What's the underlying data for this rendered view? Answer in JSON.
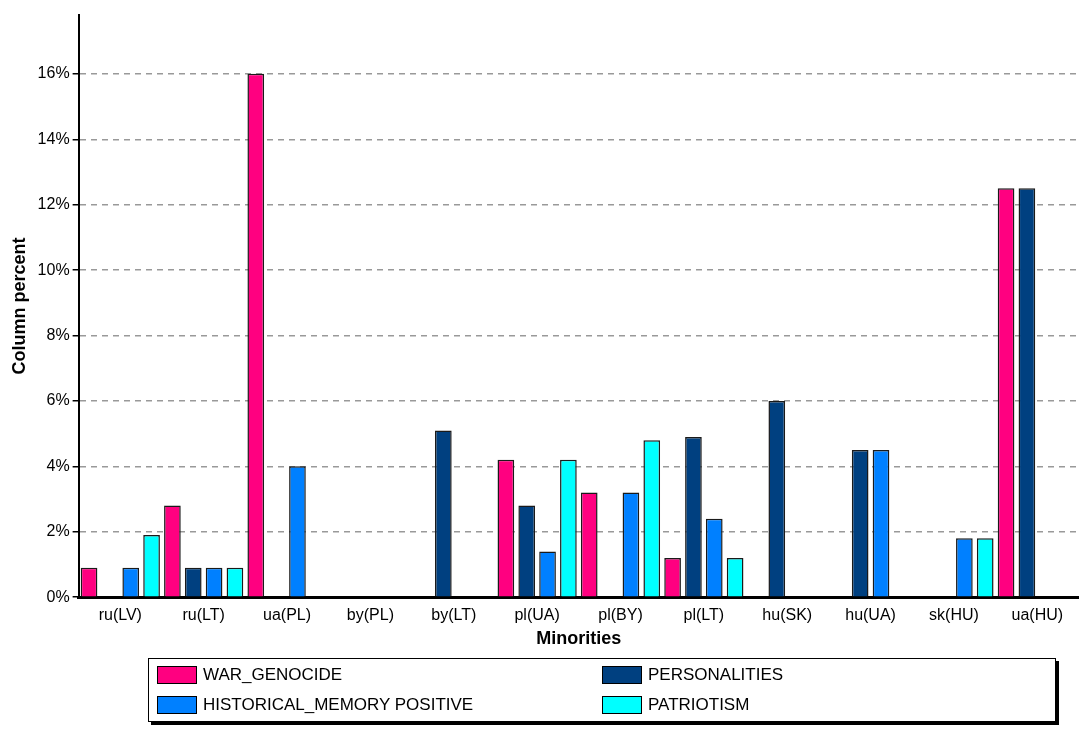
{
  "chart_data": {
    "type": "bar",
    "xlabel": "Minorities",
    "ylabel": "Column percent",
    "categories": [
      "ru(LV)",
      "ru(LT)",
      "ua(PL)",
      "by(PL)",
      "by(LT)",
      "pl(UA)",
      "pl(BY)",
      "pl(LT)",
      "hu(SK)",
      "hu(UA)",
      "sk(HU)",
      "ua(HU)"
    ],
    "series": [
      {
        "name": "WAR_GENOCIDE",
        "color": "#ff0080",
        "values": [
          0.9,
          2.8,
          16,
          0,
          0,
          4.2,
          3.2,
          1.2,
          0,
          0,
          0,
          12.5
        ]
      },
      {
        "name": "PERSONALITIES",
        "color": "#004080",
        "values": [
          0,
          0.9,
          0,
          0,
          5.1,
          2.8,
          0,
          4.9,
          6.0,
          4.5,
          0,
          12.5
        ]
      },
      {
        "name": "HISTORICAL_MEMORY POSITIVE",
        "color": "#0080ff",
        "values": [
          0.9,
          0.9,
          4.0,
          0,
          0,
          1.4,
          3.2,
          2.4,
          0,
          4.5,
          1.8,
          0
        ]
      },
      {
        "name": "PATRIOTISM",
        "color": "#00ffff",
        "values": [
          1.9,
          0.9,
          0,
          0,
          0,
          4.2,
          4.8,
          1.2,
          0,
          0,
          1.8,
          0
        ]
      }
    ],
    "ylim": [
      0,
      17.8
    ],
    "yticks": [
      {
        "value": 0,
        "label": "0%"
      },
      {
        "value": 2,
        "label": "2%"
      },
      {
        "value": 4,
        "label": "4%"
      },
      {
        "value": 6,
        "label": "6%"
      },
      {
        "value": 8,
        "label": "8%"
      },
      {
        "value": 10,
        "label": "10%"
      },
      {
        "value": 12,
        "label": "12%"
      },
      {
        "value": 14,
        "label": "14%"
      },
      {
        "value": 16,
        "label": "16%"
      }
    ],
    "grid": "y",
    "legend": "bottom"
  }
}
